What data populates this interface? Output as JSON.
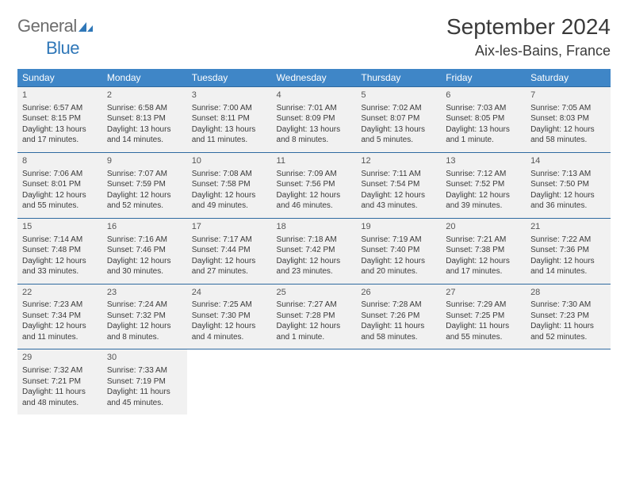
{
  "brand": {
    "name_a": "General",
    "name_b": "Blue",
    "logo_color": "#2f77b8",
    "grey": "#6d6d6d"
  },
  "title": "September 2024",
  "location": "Aix-les-Bains, France",
  "colors": {
    "header_bg": "#3f86c7",
    "header_fg": "#ffffff",
    "cell_bg": "#f1f1f1",
    "rule": "#2f6aa0",
    "text": "#3a3a3a"
  },
  "weekdays": [
    "Sunday",
    "Monday",
    "Tuesday",
    "Wednesday",
    "Thursday",
    "Friday",
    "Saturday"
  ],
  "weeks": [
    [
      {
        "n": "1",
        "sr": "Sunrise: 6:57 AM",
        "ss": "Sunset: 8:15 PM",
        "d1": "Daylight: 13 hours",
        "d2": "and 17 minutes."
      },
      {
        "n": "2",
        "sr": "Sunrise: 6:58 AM",
        "ss": "Sunset: 8:13 PM",
        "d1": "Daylight: 13 hours",
        "d2": "and 14 minutes."
      },
      {
        "n": "3",
        "sr": "Sunrise: 7:00 AM",
        "ss": "Sunset: 8:11 PM",
        "d1": "Daylight: 13 hours",
        "d2": "and 11 minutes."
      },
      {
        "n": "4",
        "sr": "Sunrise: 7:01 AM",
        "ss": "Sunset: 8:09 PM",
        "d1": "Daylight: 13 hours",
        "d2": "and 8 minutes."
      },
      {
        "n": "5",
        "sr": "Sunrise: 7:02 AM",
        "ss": "Sunset: 8:07 PM",
        "d1": "Daylight: 13 hours",
        "d2": "and 5 minutes."
      },
      {
        "n": "6",
        "sr": "Sunrise: 7:03 AM",
        "ss": "Sunset: 8:05 PM",
        "d1": "Daylight: 13 hours",
        "d2": "and 1 minute."
      },
      {
        "n": "7",
        "sr": "Sunrise: 7:05 AM",
        "ss": "Sunset: 8:03 PM",
        "d1": "Daylight: 12 hours",
        "d2": "and 58 minutes."
      }
    ],
    [
      {
        "n": "8",
        "sr": "Sunrise: 7:06 AM",
        "ss": "Sunset: 8:01 PM",
        "d1": "Daylight: 12 hours",
        "d2": "and 55 minutes."
      },
      {
        "n": "9",
        "sr": "Sunrise: 7:07 AM",
        "ss": "Sunset: 7:59 PM",
        "d1": "Daylight: 12 hours",
        "d2": "and 52 minutes."
      },
      {
        "n": "10",
        "sr": "Sunrise: 7:08 AM",
        "ss": "Sunset: 7:58 PM",
        "d1": "Daylight: 12 hours",
        "d2": "and 49 minutes."
      },
      {
        "n": "11",
        "sr": "Sunrise: 7:09 AM",
        "ss": "Sunset: 7:56 PM",
        "d1": "Daylight: 12 hours",
        "d2": "and 46 minutes."
      },
      {
        "n": "12",
        "sr": "Sunrise: 7:11 AM",
        "ss": "Sunset: 7:54 PM",
        "d1": "Daylight: 12 hours",
        "d2": "and 43 minutes."
      },
      {
        "n": "13",
        "sr": "Sunrise: 7:12 AM",
        "ss": "Sunset: 7:52 PM",
        "d1": "Daylight: 12 hours",
        "d2": "and 39 minutes."
      },
      {
        "n": "14",
        "sr": "Sunrise: 7:13 AM",
        "ss": "Sunset: 7:50 PM",
        "d1": "Daylight: 12 hours",
        "d2": "and 36 minutes."
      }
    ],
    [
      {
        "n": "15",
        "sr": "Sunrise: 7:14 AM",
        "ss": "Sunset: 7:48 PM",
        "d1": "Daylight: 12 hours",
        "d2": "and 33 minutes."
      },
      {
        "n": "16",
        "sr": "Sunrise: 7:16 AM",
        "ss": "Sunset: 7:46 PM",
        "d1": "Daylight: 12 hours",
        "d2": "and 30 minutes."
      },
      {
        "n": "17",
        "sr": "Sunrise: 7:17 AM",
        "ss": "Sunset: 7:44 PM",
        "d1": "Daylight: 12 hours",
        "d2": "and 27 minutes."
      },
      {
        "n": "18",
        "sr": "Sunrise: 7:18 AM",
        "ss": "Sunset: 7:42 PM",
        "d1": "Daylight: 12 hours",
        "d2": "and 23 minutes."
      },
      {
        "n": "19",
        "sr": "Sunrise: 7:19 AM",
        "ss": "Sunset: 7:40 PM",
        "d1": "Daylight: 12 hours",
        "d2": "and 20 minutes."
      },
      {
        "n": "20",
        "sr": "Sunrise: 7:21 AM",
        "ss": "Sunset: 7:38 PM",
        "d1": "Daylight: 12 hours",
        "d2": "and 17 minutes."
      },
      {
        "n": "21",
        "sr": "Sunrise: 7:22 AM",
        "ss": "Sunset: 7:36 PM",
        "d1": "Daylight: 12 hours",
        "d2": "and 14 minutes."
      }
    ],
    [
      {
        "n": "22",
        "sr": "Sunrise: 7:23 AM",
        "ss": "Sunset: 7:34 PM",
        "d1": "Daylight: 12 hours",
        "d2": "and 11 minutes."
      },
      {
        "n": "23",
        "sr": "Sunrise: 7:24 AM",
        "ss": "Sunset: 7:32 PM",
        "d1": "Daylight: 12 hours",
        "d2": "and 8 minutes."
      },
      {
        "n": "24",
        "sr": "Sunrise: 7:25 AM",
        "ss": "Sunset: 7:30 PM",
        "d1": "Daylight: 12 hours",
        "d2": "and 4 minutes."
      },
      {
        "n": "25",
        "sr": "Sunrise: 7:27 AM",
        "ss": "Sunset: 7:28 PM",
        "d1": "Daylight: 12 hours",
        "d2": "and 1 minute."
      },
      {
        "n": "26",
        "sr": "Sunrise: 7:28 AM",
        "ss": "Sunset: 7:26 PM",
        "d1": "Daylight: 11 hours",
        "d2": "and 58 minutes."
      },
      {
        "n": "27",
        "sr": "Sunrise: 7:29 AM",
        "ss": "Sunset: 7:25 PM",
        "d1": "Daylight: 11 hours",
        "d2": "and 55 minutes."
      },
      {
        "n": "28",
        "sr": "Sunrise: 7:30 AM",
        "ss": "Sunset: 7:23 PM",
        "d1": "Daylight: 11 hours",
        "d2": "and 52 minutes."
      }
    ],
    [
      {
        "n": "29",
        "sr": "Sunrise: 7:32 AM",
        "ss": "Sunset: 7:21 PM",
        "d1": "Daylight: 11 hours",
        "d2": "and 48 minutes."
      },
      {
        "n": "30",
        "sr": "Sunrise: 7:33 AM",
        "ss": "Sunset: 7:19 PM",
        "d1": "Daylight: 11 hours",
        "d2": "and 45 minutes."
      },
      null,
      null,
      null,
      null,
      null
    ]
  ]
}
